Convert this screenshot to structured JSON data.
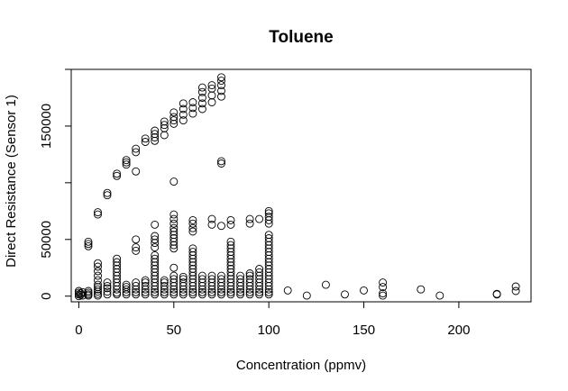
{
  "chart_data": {
    "type": "scatter",
    "title": "Toluene",
    "xlabel": "Concentration (ppmv)",
    "ylabel": "Direct Resistance (Sensor 1)",
    "xlim": [
      -4,
      238
    ],
    "ylim": [
      -5000,
      200000
    ],
    "xticks": [
      0,
      50,
      100,
      150,
      200
    ],
    "yticks": [
      0,
      50000,
      150000
    ],
    "grid": false,
    "legend": "none",
    "marker": "open-circle",
    "color": "#000000",
    "points": [
      [
        0,
        0
      ],
      [
        0,
        1500
      ],
      [
        0,
        3000
      ],
      [
        0,
        4500
      ],
      [
        1,
        1000
      ],
      [
        1,
        2500
      ],
      [
        2,
        500
      ],
      [
        2,
        3500
      ],
      [
        5,
        500
      ],
      [
        5,
        1500
      ],
      [
        5,
        3000
      ],
      [
        5,
        4500
      ],
      [
        5,
        44000
      ],
      [
        5,
        46000
      ],
      [
        5,
        48000
      ],
      [
        10,
        500
      ],
      [
        10,
        2000
      ],
      [
        10,
        4000
      ],
      [
        10,
        6000
      ],
      [
        10,
        8000
      ],
      [
        10,
        10000
      ],
      [
        10,
        14000
      ],
      [
        10,
        18000
      ],
      [
        10,
        22000
      ],
      [
        10,
        26000
      ],
      [
        10,
        29000
      ],
      [
        10,
        72000
      ],
      [
        10,
        74000
      ],
      [
        15,
        1500
      ],
      [
        15,
        4000
      ],
      [
        15,
        7000
      ],
      [
        15,
        9000
      ],
      [
        15,
        12000
      ],
      [
        15,
        89000
      ],
      [
        15,
        91000
      ],
      [
        20,
        1500
      ],
      [
        20,
        3000
      ],
      [
        20,
        6000
      ],
      [
        20,
        9000
      ],
      [
        20,
        12000
      ],
      [
        20,
        15000
      ],
      [
        20,
        18000
      ],
      [
        20,
        21000
      ],
      [
        20,
        24000
      ],
      [
        20,
        27000
      ],
      [
        20,
        30000
      ],
      [
        20,
        33000
      ],
      [
        20,
        106000
      ],
      [
        20,
        108000
      ],
      [
        25,
        1500
      ],
      [
        25,
        3500
      ],
      [
        25,
        6000
      ],
      [
        25,
        8000
      ],
      [
        25,
        10000
      ],
      [
        25,
        116000
      ],
      [
        25,
        118000
      ],
      [
        25,
        120000
      ],
      [
        30,
        1500
      ],
      [
        30,
        3500
      ],
      [
        30,
        6000
      ],
      [
        30,
        9000
      ],
      [
        30,
        12000
      ],
      [
        30,
        40000
      ],
      [
        30,
        43000
      ],
      [
        30,
        50000
      ],
      [
        30,
        110000
      ],
      [
        30,
        127000
      ],
      [
        30,
        130000
      ],
      [
        35,
        1500
      ],
      [
        35,
        3500
      ],
      [
        35,
        6000
      ],
      [
        35,
        9000
      ],
      [
        35,
        12000
      ],
      [
        35,
        14000
      ],
      [
        35,
        136000
      ],
      [
        35,
        139000
      ],
      [
        40,
        1500
      ],
      [
        40,
        3500
      ],
      [
        40,
        6000
      ],
      [
        40,
        9000
      ],
      [
        40,
        12000
      ],
      [
        40,
        15000
      ],
      [
        40,
        18000
      ],
      [
        40,
        21000
      ],
      [
        40,
        24000
      ],
      [
        40,
        27000
      ],
      [
        40,
        30000
      ],
      [
        40,
        33000
      ],
      [
        40,
        36000
      ],
      [
        40,
        43000
      ],
      [
        40,
        47000
      ],
      [
        40,
        50000
      ],
      [
        40,
        53000
      ],
      [
        40,
        63000
      ],
      [
        40,
        137000
      ],
      [
        40,
        140000
      ],
      [
        40,
        143000
      ],
      [
        40,
        146000
      ],
      [
        45,
        1500
      ],
      [
        45,
        3500
      ],
      [
        45,
        6000
      ],
      [
        45,
        9000
      ],
      [
        45,
        12000
      ],
      [
        45,
        14000
      ],
      [
        45,
        142000
      ],
      [
        45,
        148000
      ],
      [
        45,
        151000
      ],
      [
        45,
        154000
      ],
      [
        50,
        1500
      ],
      [
        50,
        3500
      ],
      [
        50,
        6000
      ],
      [
        50,
        9000
      ],
      [
        50,
        12000
      ],
      [
        50,
        15000
      ],
      [
        50,
        18000
      ],
      [
        50,
        25000
      ],
      [
        50,
        42000
      ],
      [
        50,
        45000
      ],
      [
        50,
        48000
      ],
      [
        50,
        51000
      ],
      [
        50,
        54000
      ],
      [
        50,
        57000
      ],
      [
        50,
        60000
      ],
      [
        50,
        64000
      ],
      [
        50,
        68000
      ],
      [
        50,
        72000
      ],
      [
        50,
        101000
      ],
      [
        50,
        152000
      ],
      [
        50,
        155000
      ],
      [
        50,
        158000
      ],
      [
        50,
        162000
      ],
      [
        55,
        1500
      ],
      [
        55,
        3500
      ],
      [
        55,
        6000
      ],
      [
        55,
        9000
      ],
      [
        55,
        12000
      ],
      [
        55,
        15000
      ],
      [
        55,
        17000
      ],
      [
        55,
        155000
      ],
      [
        55,
        160000
      ],
      [
        55,
        165000
      ],
      [
        55,
        170000
      ],
      [
        60,
        1500
      ],
      [
        60,
        3500
      ],
      [
        60,
        6000
      ],
      [
        60,
        9000
      ],
      [
        60,
        12000
      ],
      [
        60,
        15000
      ],
      [
        60,
        18000
      ],
      [
        60,
        21000
      ],
      [
        60,
        24000
      ],
      [
        60,
        27000
      ],
      [
        60,
        30000
      ],
      [
        60,
        33000
      ],
      [
        60,
        36000
      ],
      [
        60,
        39000
      ],
      [
        60,
        42000
      ],
      [
        60,
        57000
      ],
      [
        60,
        60000
      ],
      [
        60,
        64000
      ],
      [
        60,
        67000
      ],
      [
        60,
        161000
      ],
      [
        60,
        166000
      ],
      [
        60,
        171000
      ],
      [
        65,
        1500
      ],
      [
        65,
        3500
      ],
      [
        65,
        6000
      ],
      [
        65,
        9000
      ],
      [
        65,
        12000
      ],
      [
        65,
        15000
      ],
      [
        65,
        18000
      ],
      [
        65,
        165000
      ],
      [
        65,
        170000
      ],
      [
        65,
        175000
      ],
      [
        65,
        180000
      ],
      [
        65,
        184000
      ],
      [
        70,
        1500
      ],
      [
        70,
        3500
      ],
      [
        70,
        6000
      ],
      [
        70,
        9000
      ],
      [
        70,
        12000
      ],
      [
        70,
        15000
      ],
      [
        70,
        18000
      ],
      [
        70,
        63000
      ],
      [
        70,
        68000
      ],
      [
        70,
        171000
      ],
      [
        70,
        177000
      ],
      [
        70,
        183000
      ],
      [
        70,
        186000
      ],
      [
        75,
        1500
      ],
      [
        75,
        3500
      ],
      [
        75,
        6000
      ],
      [
        75,
        9000
      ],
      [
        75,
        12000
      ],
      [
        75,
        15000
      ],
      [
        75,
        18000
      ],
      [
        75,
        62000
      ],
      [
        75,
        117000
      ],
      [
        75,
        119000
      ],
      [
        75,
        176000
      ],
      [
        75,
        181000
      ],
      [
        75,
        186000
      ],
      [
        75,
        190000
      ],
      [
        75,
        193000
      ],
      [
        80,
        1500
      ],
      [
        80,
        3500
      ],
      [
        80,
        6000
      ],
      [
        80,
        9000
      ],
      [
        80,
        12000
      ],
      [
        80,
        15000
      ],
      [
        80,
        18000
      ],
      [
        80,
        21000
      ],
      [
        80,
        24000
      ],
      [
        80,
        27000
      ],
      [
        80,
        30000
      ],
      [
        80,
        33000
      ],
      [
        80,
        36000
      ],
      [
        80,
        39000
      ],
      [
        80,
        42000
      ],
      [
        80,
        45000
      ],
      [
        80,
        48000
      ],
      [
        80,
        63000
      ],
      [
        80,
        67000
      ],
      [
        85,
        1500
      ],
      [
        85,
        3500
      ],
      [
        85,
        6000
      ],
      [
        85,
        9000
      ],
      [
        85,
        12000
      ],
      [
        85,
        15000
      ],
      [
        85,
        18000
      ],
      [
        90,
        1500
      ],
      [
        90,
        3500
      ],
      [
        90,
        6000
      ],
      [
        90,
        9000
      ],
      [
        90,
        12000
      ],
      [
        90,
        15000
      ],
      [
        90,
        18000
      ],
      [
        90,
        20000
      ],
      [
        90,
        64000
      ],
      [
        90,
        68000
      ],
      [
        95,
        1500
      ],
      [
        95,
        3500
      ],
      [
        95,
        6000
      ],
      [
        95,
        9000
      ],
      [
        95,
        12000
      ],
      [
        95,
        15000
      ],
      [
        95,
        18000
      ],
      [
        95,
        21000
      ],
      [
        95,
        24000
      ],
      [
        95,
        68000
      ],
      [
        100,
        1500
      ],
      [
        100,
        3500
      ],
      [
        100,
        6000
      ],
      [
        100,
        9000
      ],
      [
        100,
        12000
      ],
      [
        100,
        15000
      ],
      [
        100,
        18000
      ],
      [
        100,
        21000
      ],
      [
        100,
        24000
      ],
      [
        100,
        27000
      ],
      [
        100,
        30000
      ],
      [
        100,
        33000
      ],
      [
        100,
        36000
      ],
      [
        100,
        39000
      ],
      [
        100,
        42000
      ],
      [
        100,
        45000
      ],
      [
        100,
        48000
      ],
      [
        100,
        51000
      ],
      [
        100,
        54000
      ],
      [
        100,
        64000
      ],
      [
        100,
        67000
      ],
      [
        100,
        70000
      ],
      [
        100,
        73000
      ],
      [
        100,
        75000
      ],
      [
        110,
        5000
      ],
      [
        120,
        500
      ],
      [
        130,
        10000
      ],
      [
        140,
        1500
      ],
      [
        150,
        5000
      ],
      [
        160,
        500
      ],
      [
        160,
        2500
      ],
      [
        160,
        8000
      ],
      [
        160,
        12000
      ],
      [
        180,
        6000
      ],
      [
        190,
        500
      ],
      [
        220,
        1500
      ],
      [
        220,
        2000
      ],
      [
        230,
        4500
      ],
      [
        230,
        8500
      ]
    ]
  }
}
